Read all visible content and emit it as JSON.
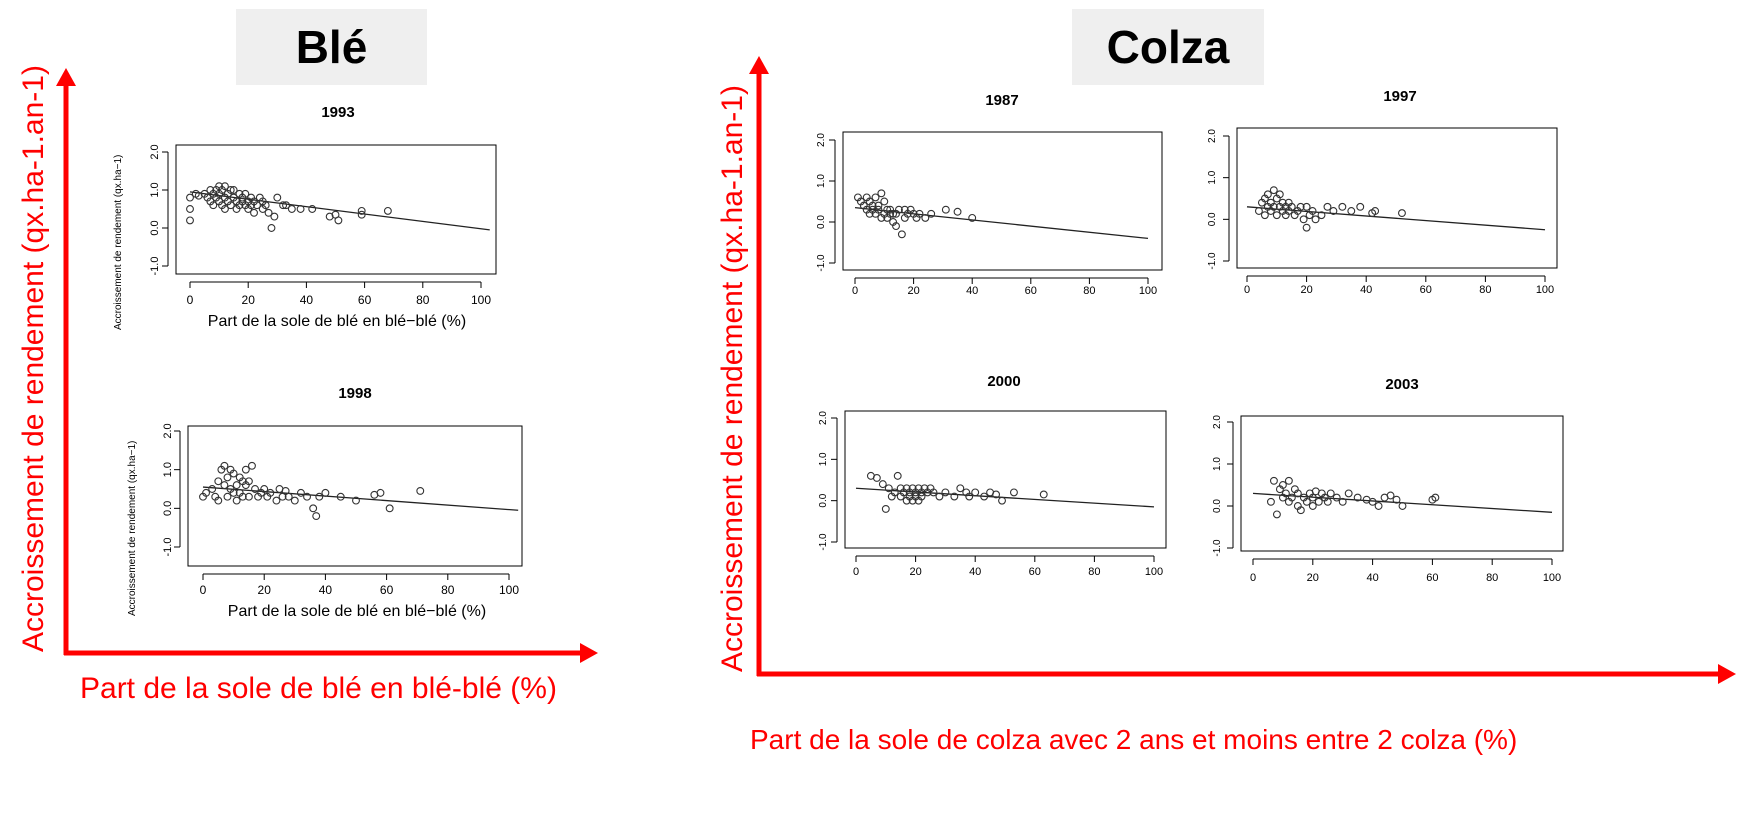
{
  "sections": {
    "ble": {
      "title": "Blé",
      "big_ylabel": "Accroissement de rendement (qx.ha-1.an-1)",
      "big_xlabel": "Part de la sole de blé en blé-blé (%)"
    },
    "colza": {
      "title": "Colza",
      "big_ylabel": "Accroissement de rendement (qx.ha-1.an-1)",
      "big_xlabel": "Part de la sole de colza avec 2 ans et moins entre 2 colza (%)"
    }
  },
  "colors": {
    "accent": "#ff0000",
    "points": "#333333",
    "line": "#222222",
    "title_box": "#efefef"
  },
  "chart_data": [
    {
      "type": "scatter",
      "section": "Blé",
      "title": "1993",
      "xlabel": "Part de la sole de blé en blé−blé (%)",
      "ylabel": "Accroissement de rendement (qx.ha−1)",
      "xlim": [
        0,
        100
      ],
      "ylim": [
        -1.4,
        2.2
      ],
      "xticks": [
        0,
        20,
        40,
        60,
        80,
        100
      ],
      "yticks": [
        -1.0,
        0.0,
        1.0,
        2.0
      ],
      "x": [
        0,
        0,
        0,
        2,
        3,
        5,
        6,
        7,
        7,
        8,
        8,
        9,
        9,
        10,
        10,
        10,
        11,
        11,
        12,
        12,
        12,
        13,
        13,
        14,
        14,
        15,
        15,
        16,
        16,
        17,
        17,
        18,
        18,
        19,
        19,
        20,
        20,
        21,
        21,
        22,
        22,
        23,
        24,
        25,
        25,
        26,
        27,
        28,
        29,
        30,
        32,
        33,
        35,
        38,
        42,
        48,
        50,
        51,
        59,
        59,
        68
      ],
      "y": [
        0.8,
        0.5,
        0.2,
        0.9,
        0.85,
        0.9,
        0.8,
        0.7,
        1.0,
        0.6,
        0.9,
        0.8,
        1.0,
        0.7,
        1.1,
        0.9,
        0.6,
        1.0,
        0.8,
        1.1,
        0.5,
        0.7,
        0.9,
        1.0,
        0.6,
        0.8,
        1.0,
        0.7,
        0.5,
        0.9,
        0.6,
        0.8,
        0.7,
        0.6,
        0.9,
        0.7,
        0.5,
        0.8,
        0.6,
        0.7,
        0.4,
        0.6,
        0.8,
        0.5,
        0.7,
        0.6,
        0.4,
        0.0,
        0.3,
        0.8,
        0.6,
        0.6,
        0.5,
        0.5,
        0.5,
        0.3,
        0.35,
        0.2,
        0.45,
        0.35,
        0.45
      ],
      "trend": {
        "x": [
          0,
          103
        ],
        "y": [
          0.95,
          -0.05
        ]
      }
    },
    {
      "type": "scatter",
      "section": "Blé",
      "title": "1998",
      "xlabel": "Part de la sole de blé en blé−blé (%)",
      "ylabel": "Accroissement de rendement (qx.ha−1)",
      "xlim": [
        0,
        100
      ],
      "ylim": [
        -1.4,
        2.2
      ],
      "xticks": [
        0,
        20,
        40,
        60,
        80,
        100
      ],
      "yticks": [
        -1.0,
        0.0,
        1.0,
        2.0
      ],
      "x": [
        0,
        1,
        3,
        4,
        5,
        5,
        6,
        7,
        7,
        8,
        8,
        9,
        9,
        10,
        10,
        11,
        11,
        12,
        12,
        13,
        13,
        14,
        14,
        15,
        15,
        16,
        17,
        18,
        19,
        20,
        21,
        22,
        24,
        25,
        26,
        27,
        28,
        30,
        32,
        34,
        36,
        37,
        38,
        40,
        45,
        50,
        56,
        58,
        61,
        71
      ],
      "y": [
        0.3,
        0.4,
        0.5,
        0.3,
        0.7,
        0.2,
        1.0,
        0.6,
        1.1,
        0.3,
        0.8,
        0.5,
        1.0,
        0.4,
        0.9,
        0.6,
        0.2,
        0.8,
        0.4,
        0.7,
        0.3,
        0.6,
        1.0,
        0.3,
        0.7,
        1.1,
        0.5,
        0.3,
        0.4,
        0.5,
        0.3,
        0.4,
        0.2,
        0.5,
        0.3,
        0.45,
        0.3,
        0.2,
        0.4,
        0.3,
        0.0,
        -0.2,
        0.3,
        0.4,
        0.3,
        0.2,
        0.35,
        0.4,
        0.0,
        0.45
      ],
      "trend": {
        "x": [
          0,
          103
        ],
        "y": [
          0.55,
          -0.05
        ]
      }
    },
    {
      "type": "scatter",
      "section": "Colza",
      "title": "1987",
      "xlim": [
        0,
        100
      ],
      "ylim": [
        -1.0,
        2.0
      ],
      "xticks": [
        0,
        20,
        40,
        60,
        80,
        100
      ],
      "yticks": [
        -1.0,
        0.0,
        1.0,
        2.0
      ],
      "x": [
        1,
        2,
        3,
        4,
        4,
        5,
        5,
        6,
        6,
        7,
        7,
        8,
        8,
        9,
        9,
        10,
        10,
        11,
        11,
        12,
        12,
        13,
        13,
        14,
        14,
        15,
        16,
        17,
        17,
        18,
        19,
        20,
        21,
        22,
        24,
        26,
        31,
        35,
        40
      ],
      "y": [
        0.6,
        0.5,
        0.4,
        0.3,
        0.6,
        0.2,
        0.5,
        0.3,
        0.4,
        0.6,
        0.2,
        0.4,
        0.3,
        0.7,
        0.1,
        0.5,
        0.2,
        0.3,
        0.1,
        0.2,
        0.3,
        0.0,
        0.2,
        -0.1,
        0.2,
        0.3,
        -0.3,
        0.1,
        0.3,
        0.2,
        0.3,
        0.2,
        0.1,
        0.2,
        0.1,
        0.2,
        0.3,
        0.25,
        0.1
      ],
      "trend": {
        "x": [
          0,
          100
        ],
        "y": [
          0.35,
          -0.4
        ]
      }
    },
    {
      "type": "scatter",
      "section": "Colza",
      "title": "1997",
      "xlim": [
        0,
        100
      ],
      "ylim": [
        -1.0,
        2.0
      ],
      "xticks": [
        0,
        20,
        40,
        60,
        80,
        100
      ],
      "yticks": [
        -1.0,
        0.0,
        1.0,
        2.0
      ],
      "x": [
        4,
        5,
        6,
        6,
        7,
        7,
        8,
        8,
        9,
        9,
        10,
        10,
        11,
        11,
        12,
        12,
        13,
        13,
        14,
        14,
        15,
        16,
        17,
        18,
        19,
        20,
        20,
        21,
        22,
        23,
        25,
        27,
        29,
        32,
        35,
        38,
        42,
        43,
        52
      ],
      "y": [
        0.2,
        0.4,
        0.1,
        0.5,
        0.3,
        0.6,
        0.2,
        0.4,
        0.3,
        0.7,
        0.1,
        0.5,
        0.3,
        0.6,
        0.2,
        0.4,
        0.1,
        0.3,
        0.2,
        0.4,
        0.3,
        0.1,
        0.2,
        0.3,
        0.0,
        0.3,
        -0.2,
        0.1,
        0.2,
        0.0,
        0.1,
        0.3,
        0.2,
        0.3,
        0.2,
        0.3,
        0.15,
        0.2,
        0.15
      ],
      "trend": {
        "x": [
          0,
          100
        ],
        "y": [
          0.3,
          -0.25
        ]
      }
    },
    {
      "type": "scatter",
      "section": "Colza",
      "title": "2000",
      "xlim": [
        0,
        100
      ],
      "ylim": [
        -1.0,
        2.0
      ],
      "xticks": [
        0,
        20,
        40,
        60,
        80,
        100
      ],
      "yticks": [
        -1.0,
        0.0,
        1.0,
        2.0
      ],
      "x": [
        5,
        7,
        9,
        10,
        11,
        12,
        13,
        14,
        15,
        15,
        16,
        17,
        17,
        18,
        18,
        19,
        19,
        20,
        20,
        21,
        21,
        22,
        22,
        23,
        24,
        25,
        26,
        28,
        30,
        33,
        35,
        37,
        38,
        40,
        43,
        45,
        47,
        49,
        53,
        63
      ],
      "y": [
        0.6,
        0.55,
        0.4,
        -0.2,
        0.3,
        0.1,
        0.2,
        0.6,
        0.3,
        0.1,
        0.2,
        0.0,
        0.3,
        0.1,
        0.2,
        0.3,
        0.0,
        0.2,
        0.1,
        0.3,
        0.0,
        0.2,
        0.1,
        0.3,
        0.2,
        0.3,
        0.2,
        0.1,
        0.2,
        0.1,
        0.3,
        0.2,
        0.1,
        0.2,
        0.1,
        0.2,
        0.15,
        0.0,
        0.2,
        0.15
      ],
      "trend": {
        "x": [
          0,
          100
        ],
        "y": [
          0.3,
          -0.15
        ]
      }
    },
    {
      "type": "scatter",
      "section": "Colza",
      "title": "2003",
      "xlim": [
        0,
        100
      ],
      "ylim": [
        -1.0,
        2.0
      ],
      "xticks": [
        0,
        20,
        40,
        60,
        80,
        100
      ],
      "yticks": [
        -1.0,
        0.0,
        1.0,
        2.0
      ],
      "x": [
        6,
        7,
        8,
        9,
        10,
        10,
        11,
        12,
        12,
        13,
        14,
        15,
        15,
        16,
        17,
        18,
        19,
        20,
        20,
        21,
        22,
        23,
        24,
        25,
        26,
        28,
        30,
        32,
        35,
        38,
        40,
        42,
        44,
        46,
        48,
        50,
        60,
        61
      ],
      "y": [
        0.1,
        0.6,
        -0.2,
        0.4,
        0.2,
        0.5,
        0.3,
        0.1,
        0.6,
        0.2,
        0.4,
        0.0,
        0.3,
        -0.1,
        0.2,
        0.1,
        0.3,
        0.0,
        0.2,
        0.35,
        0.1,
        0.3,
        0.2,
        0.1,
        0.3,
        0.2,
        0.1,
        0.3,
        0.2,
        0.15,
        0.1,
        0.0,
        0.2,
        0.25,
        0.15,
        0.0,
        0.15,
        0.2
      ],
      "trend": {
        "x": [
          0,
          100
        ],
        "y": [
          0.3,
          -0.15
        ]
      }
    }
  ]
}
